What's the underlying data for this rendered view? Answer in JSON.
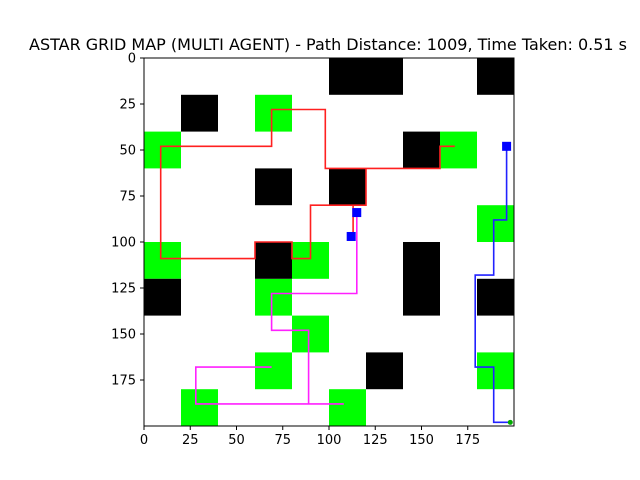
{
  "chart_data": {
    "type": "heatmap",
    "title": "ASTAR GRID MAP (MULTI AGENT) - Path Distance: 1009, Time Taken: 0.51 s",
    "xlabel": "",
    "ylabel": "",
    "xlim": [
      0,
      200
    ],
    "ylim": [
      200,
      0
    ],
    "y_axis_inverted": true,
    "x_ticks": [
      0,
      25,
      50,
      75,
      100,
      125,
      150,
      175
    ],
    "y_ticks": [
      0,
      25,
      50,
      75,
      100,
      125,
      150,
      175
    ],
    "grid": false,
    "legend": "none",
    "colors": {
      "obstacle": "#000000",
      "free": "#ffffff",
      "highlight": "#00ff00",
      "path_red": "#ff2020",
      "path_blue": "#2222ff",
      "path_magenta": "#ff20ff",
      "marker": "#0000ff",
      "goal": "#00aa00"
    },
    "obstacles": [
      [
        100,
        0,
        40,
        20
      ],
      [
        180,
        0,
        20,
        20
      ],
      [
        20,
        20,
        20,
        20
      ],
      [
        140,
        40,
        20,
        20
      ],
      [
        60,
        60,
        20,
        20
      ],
      [
        100,
        60,
        20,
        20
      ],
      [
        60,
        100,
        20,
        20
      ],
      [
        140,
        100,
        20,
        40
      ],
      [
        0,
        120,
        20,
        20
      ],
      [
        180,
        120,
        20,
        20
      ],
      [
        120,
        160,
        20,
        20
      ]
    ],
    "highlights": [
      [
        60,
        20,
        20,
        20
      ],
      [
        0,
        40,
        20,
        20
      ],
      [
        160,
        40,
        20,
        20
      ],
      [
        180,
        80,
        20,
        20
      ],
      [
        0,
        100,
        20,
        20
      ],
      [
        80,
        100,
        20,
        20
      ],
      [
        60,
        120,
        20,
        20
      ],
      [
        80,
        140,
        20,
        20
      ],
      [
        60,
        160,
        20,
        20
      ],
      [
        180,
        160,
        20,
        20
      ],
      [
        20,
        180,
        20,
        20
      ],
      [
        100,
        180,
        20,
        20
      ]
    ],
    "paths": [
      {
        "color_key": "path_red",
        "points": [
          [
            168,
            48
          ],
          [
            160,
            48
          ],
          [
            160,
            60
          ],
          [
            120,
            60
          ],
          [
            120,
            80
          ],
          [
            90,
            80
          ],
          [
            90,
            109
          ],
          [
            80,
            109
          ],
          [
            80,
            100
          ],
          [
            60,
            100
          ],
          [
            60,
            109
          ],
          [
            9,
            109
          ],
          [
            9,
            48
          ],
          [
            69,
            48
          ],
          [
            69,
            28
          ],
          [
            98,
            28
          ],
          [
            98,
            60
          ],
          [
            120,
            60
          ],
          [
            120,
            80
          ],
          [
            113,
            80
          ],
          [
            113,
            98
          ]
        ]
      },
      {
        "color_key": "path_blue",
        "points": [
          [
            196,
            48
          ],
          [
            196,
            88
          ],
          [
            189,
            88
          ],
          [
            189,
            118
          ],
          [
            179,
            118
          ],
          [
            179,
            168
          ],
          [
            189,
            168
          ],
          [
            189,
            198
          ],
          [
            198,
            198
          ]
        ]
      },
      {
        "color_key": "path_magenta",
        "points": [
          [
            115,
            85
          ],
          [
            115,
            128
          ],
          [
            69,
            128
          ],
          [
            69,
            148
          ],
          [
            89,
            148
          ],
          [
            89,
            188
          ],
          [
            28,
            188
          ],
          [
            28,
            168
          ],
          [
            69,
            168
          ],
          [
            28,
            168
          ],
          [
            28,
            188
          ],
          [
            108,
            188
          ]
        ]
      }
    ],
    "markers": [
      [
        196,
        48
      ],
      [
        115,
        84
      ],
      [
        112,
        97
      ]
    ],
    "goal_marker": [
      198,
      198
    ]
  }
}
